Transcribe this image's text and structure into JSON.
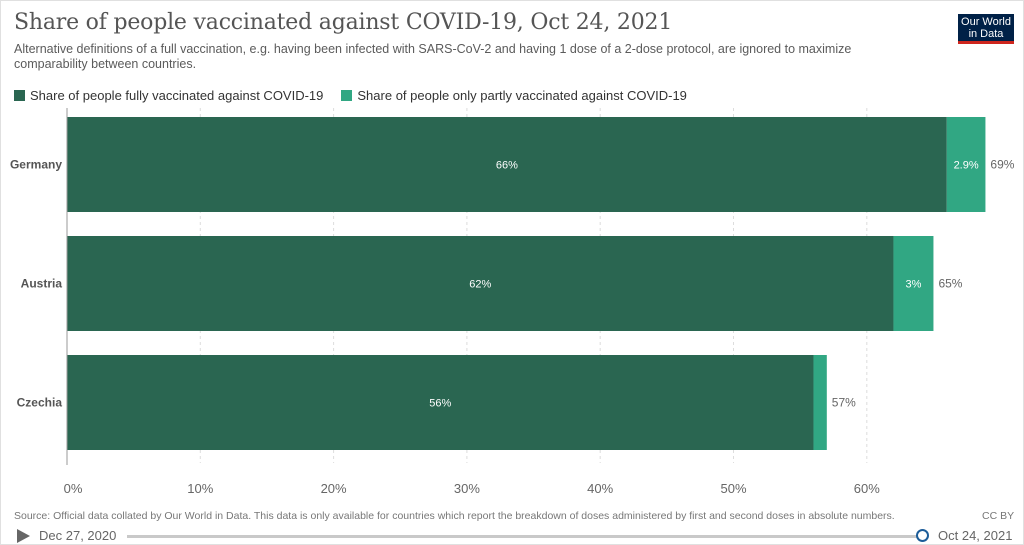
{
  "header": {
    "title": "Share of people vaccinated against COVID-19, Oct 24, 2021",
    "subtitle": "Alternative definitions of a full vaccination, e.g. having been infected with SARS-CoV-2 and having 1 dose of a 2-dose protocol, are ignored to maximize comparability between countries.",
    "logo_line1": "Our World",
    "logo_line2": "in Data"
  },
  "colors": {
    "fully": "#2a6651",
    "partly": "#31a783"
  },
  "chart_data": {
    "type": "bar",
    "orientation": "horizontal",
    "stacked": true,
    "categories": [
      "Germany",
      "Austria",
      "Czechia"
    ],
    "series": [
      {
        "name": "Share of people fully vaccinated against COVID-19",
        "values": [
          66,
          62,
          56
        ],
        "labels": [
          "66%",
          "62%",
          "56%"
        ]
      },
      {
        "name": "Share of people only partly vaccinated against COVID-19",
        "values": [
          2.9,
          3,
          1
        ],
        "labels": [
          "2.9%",
          "3%",
          ""
        ]
      }
    ],
    "totals": [
      "69%",
      "65%",
      "57%"
    ],
    "xlim": [
      0,
      70
    ],
    "xticks": [
      0,
      10,
      20,
      30,
      40,
      50,
      60
    ],
    "xtick_labels": [
      "0%",
      "10%",
      "20%",
      "30%",
      "40%",
      "50%",
      "60%"
    ],
    "grid": true,
    "legend": "top-left"
  },
  "footer": {
    "source": "Source: Official data collated by Our World in Data. This data is only available for countries which report the breakdown of doses administered by first and second doses in absolute numbers.",
    "license": "CC BY"
  },
  "timeline": {
    "start": "Dec 27, 2020",
    "end": "Oct 24, 2021"
  }
}
